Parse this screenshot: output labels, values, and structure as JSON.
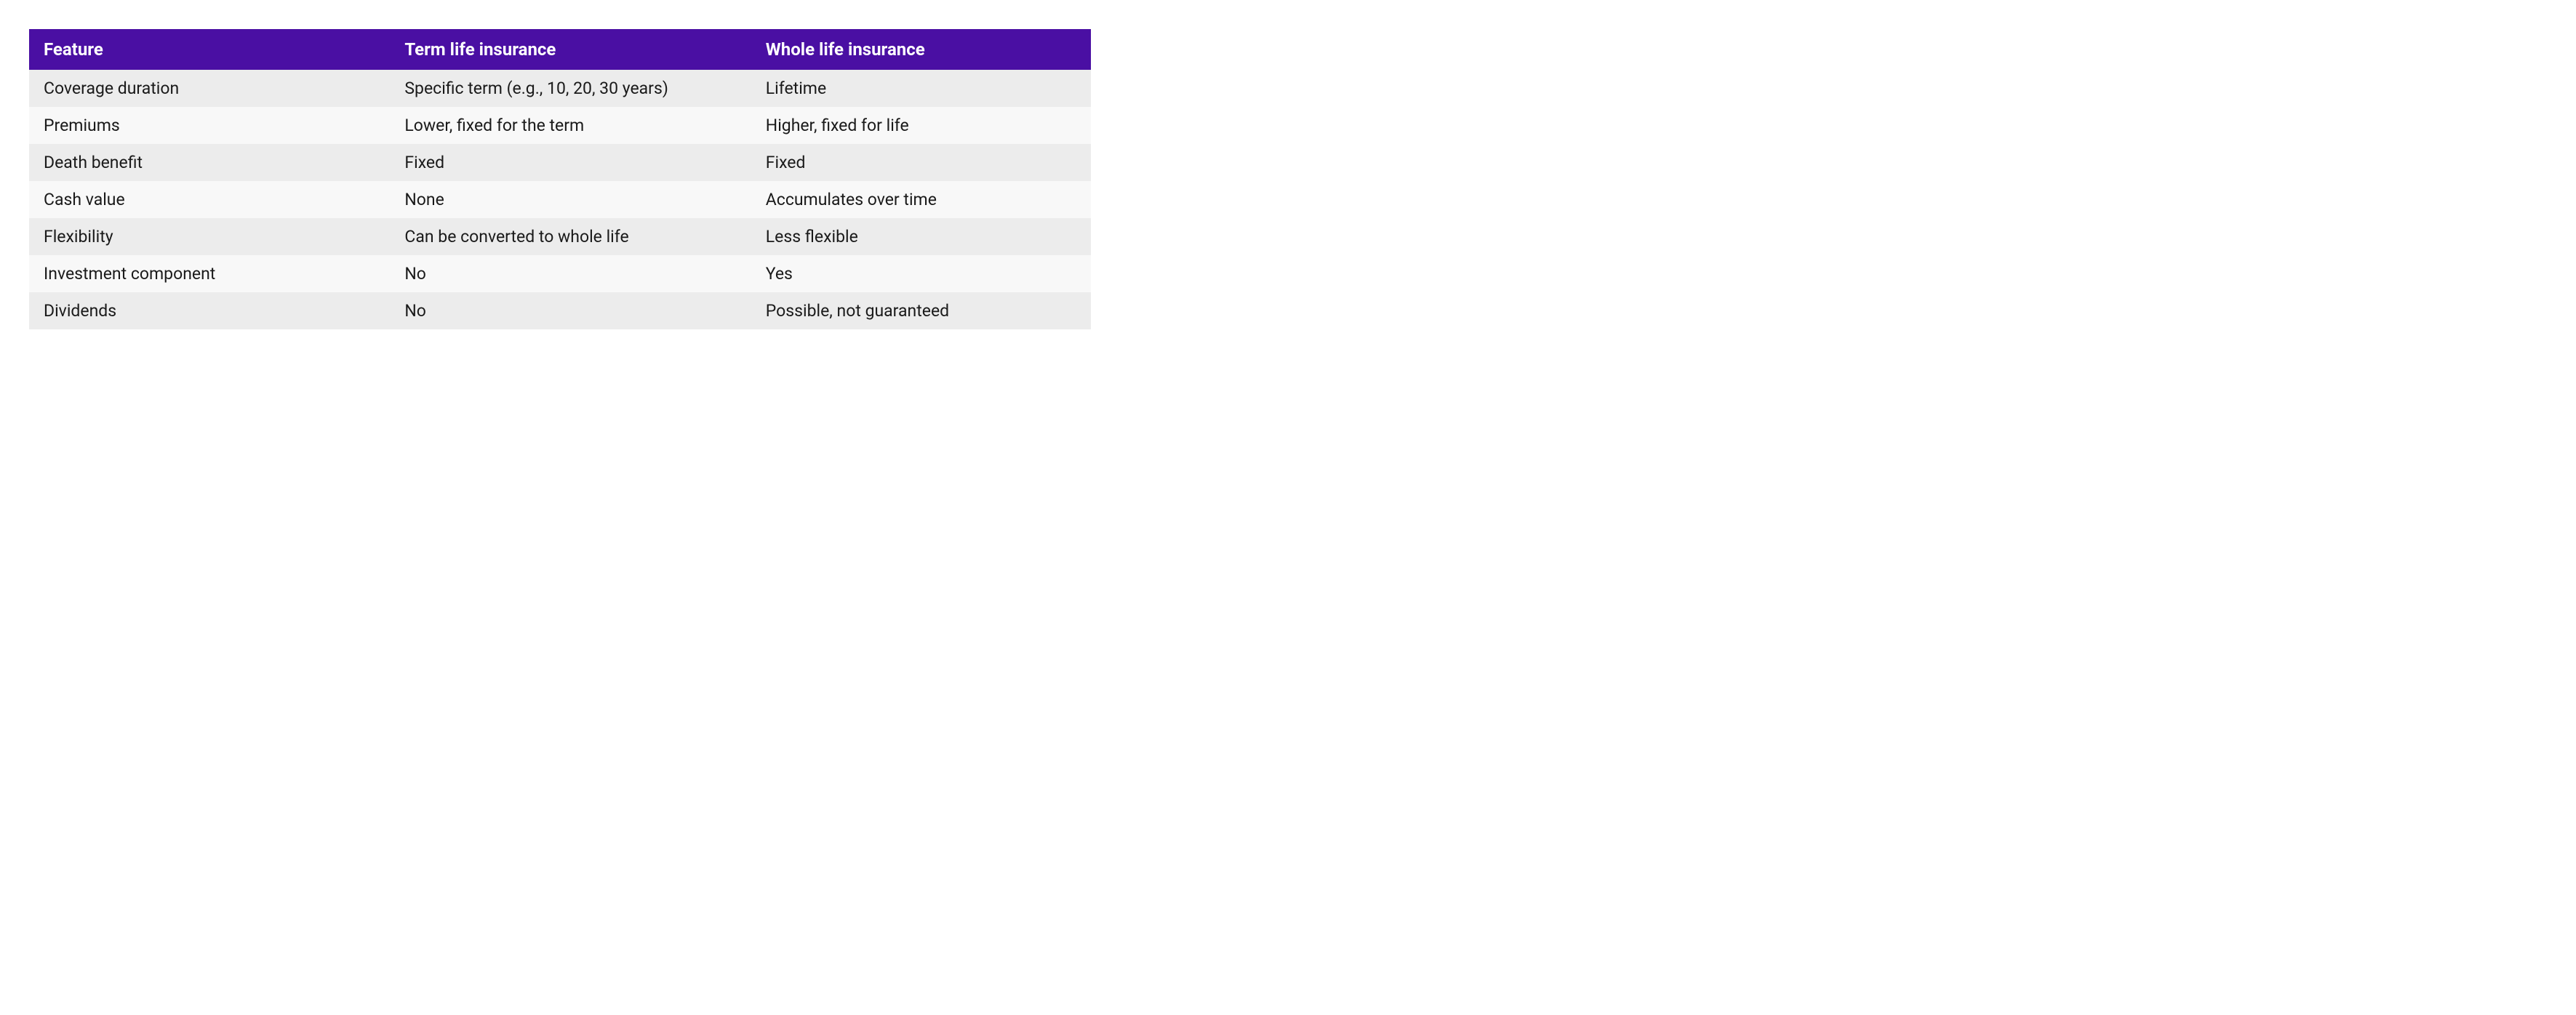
{
  "table": {
    "type": "table",
    "columns": [
      "Feature",
      "Term life insurance",
      "Whole life insurance"
    ],
    "rows": [
      [
        "Coverage duration",
        "Specific term (e.g., 10, 20, 30 years)",
        "Lifetime"
      ],
      [
        "Premiums",
        "Lower, fixed for the term",
        "Higher, fixed for life"
      ],
      [
        "Death benefit",
        "Fixed",
        "Fixed"
      ],
      [
        "Cash value",
        "None",
        "Accumulates over time"
      ],
      [
        "Flexibility",
        "Can be converted to whole life",
        "Less flexible"
      ],
      [
        "Investment component",
        "No",
        "Yes"
      ],
      [
        "Dividends",
        "No",
        "Possible, not guaranteed"
      ]
    ],
    "column_widths": [
      "34%",
      "34%",
      "32%"
    ],
    "header_bg": "#4a0fa3",
    "header_text_color": "#ffffff",
    "header_fontsize": 24,
    "header_fontweight": 700,
    "body_text_color": "#1a1a1a",
    "body_fontsize": 23,
    "row_odd_bg": "#ececec",
    "row_even_bg": "#f8f8f8",
    "background_color": "#ffffff",
    "font_family": "sans-serif"
  }
}
